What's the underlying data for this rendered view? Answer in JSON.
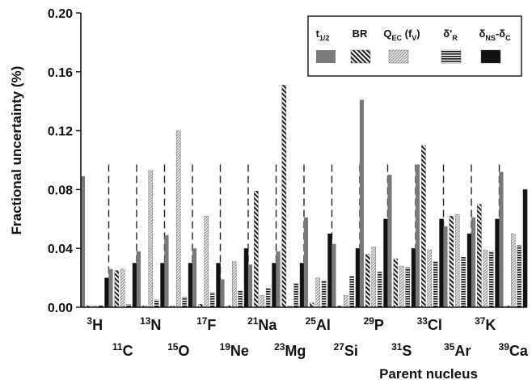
{
  "chart_data": {
    "type": "bar",
    "title": "",
    "xlabel": "Parent nucleus",
    "ylabel": "Fractional uncertainty  (%)",
    "ylim": [
      0,
      0.2
    ],
    "yticks": [
      "0.00",
      "0.04",
      "0.08",
      "0.12",
      "0.16",
      "0.20"
    ],
    "ytick_values": [
      0,
      0.04,
      0.08,
      0.12,
      0.16,
      0.2
    ],
    "legend_position": "top-right",
    "categories": [
      {
        "mass": "3",
        "symbol": "H"
      },
      {
        "mass": "11",
        "symbol": "C"
      },
      {
        "mass": "13",
        "symbol": "N"
      },
      {
        "mass": "15",
        "symbol": "O"
      },
      {
        "mass": "17",
        "symbol": "F"
      },
      {
        "mass": "19",
        "symbol": "Ne"
      },
      {
        "mass": "21",
        "symbol": "Na"
      },
      {
        "mass": "23",
        "symbol": "Mg"
      },
      {
        "mass": "25",
        "symbol": "Al"
      },
      {
        "mass": "27",
        "symbol": "Si"
      },
      {
        "mass": "29",
        "symbol": "P"
      },
      {
        "mass": "31",
        "symbol": "S"
      },
      {
        "mass": "33",
        "symbol": "Cl"
      },
      {
        "mass": "35",
        "symbol": "Ar"
      },
      {
        "mass": "37",
        "symbol": "K"
      },
      {
        "mass": "39",
        "symbol": "Ca"
      }
    ],
    "series": [
      {
        "key": "t12",
        "pattern": "solid-gray",
        "legend": {
          "main": "t",
          "sub": "1/2"
        },
        "values": [
          0.089,
          0.026,
          0.038,
          0.049,
          0.04,
          0.019,
          0.029,
          0.038,
          0.061,
          0.043,
          0.141,
          0.09,
          0.097,
          0.055,
          0.061,
          0.092
        ]
      },
      {
        "key": "br",
        "pattern": "diagonal-stripes",
        "legend": {
          "main": "BR",
          "sub": ""
        },
        "values": [
          0.001,
          0.025,
          0.001,
          0.001,
          0.002,
          0.001,
          0.079,
          0.151,
          0.003,
          0.001,
          0.036,
          0.033,
          0.11,
          0.062,
          0.07,
          0.001
        ]
      },
      {
        "key": "qec",
        "pattern": "fine-hatch",
        "legend": {
          "main": "Q",
          "sub": "EC",
          "suffix": " (f",
          "suffix_sub": "V",
          "suffix_end": ")"
        },
        "values": [
          0.001,
          0.026,
          0.093,
          0.12,
          0.062,
          0.031,
          0.008,
          0.001,
          0.02,
          0.008,
          0.041,
          0.028,
          0.039,
          0.063,
          0.039,
          0.05
        ]
      },
      {
        "key": "dr",
        "pattern": "horizontal-stripes",
        "legend": {
          "main": "δ'",
          "sub": "R"
        },
        "values": [
          0.001,
          0.002,
          0.005,
          0.007,
          0.01,
          0.011,
          0.013,
          0.016,
          0.018,
          0.021,
          0.024,
          0.027,
          0.031,
          0.034,
          0.038,
          0.042
        ]
      },
      {
        "key": "dnsc",
        "pattern": "solid-black",
        "legend": {
          "main": "δ",
          "sub": "NS",
          "mid": "-δ",
          "sub2": "C"
        },
        "values": [
          0.02,
          0.03,
          0.03,
          0.03,
          0.03,
          0.04,
          0.03,
          0.03,
          0.05,
          0.04,
          0.06,
          0.04,
          0.06,
          0.05,
          0.06,
          0.08
        ]
      }
    ]
  }
}
